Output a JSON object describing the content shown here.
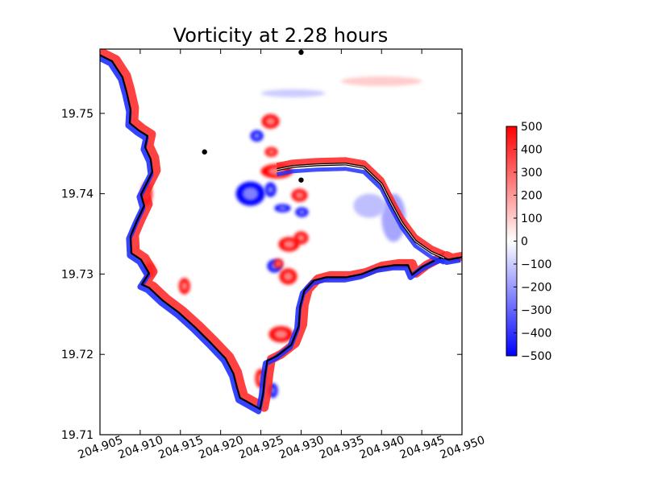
{
  "chart_data": {
    "type": "heatmap",
    "title": "Vorticity at 2.28 hours",
    "xlabel": "",
    "ylabel": "",
    "xlim": [
      204.905,
      204.95
    ],
    "ylim": [
      19.71,
      19.758
    ],
    "xticks": [
      204.905,
      204.91,
      204.915,
      204.92,
      204.925,
      204.93,
      204.935,
      204.94,
      204.945,
      204.95
    ],
    "xtick_labels": [
      "204.905",
      "204.910",
      "204.915",
      "204.920",
      "204.925",
      "204.930",
      "204.935",
      "204.940",
      "204.945",
      "204.950"
    ],
    "yticks": [
      19.71,
      19.72,
      19.73,
      19.74,
      19.75
    ],
    "ytick_labels": [
      "19.71",
      "19.72",
      "19.73",
      "19.74",
      "19.75"
    ],
    "colorbar": {
      "min": -500,
      "max": 500,
      "colormap": "bwr",
      "ticks": [
        500,
        400,
        300,
        200,
        100,
        0,
        -100,
        -200,
        -300,
        -400,
        -500
      ],
      "tick_labels": [
        "500",
        "400",
        "300",
        "200",
        "100",
        "0",
        "−100",
        "−200",
        "−300",
        "−400",
        "−500"
      ]
    },
    "gauge_points": [
      {
        "x": 204.93,
        "y": 19.7576
      },
      {
        "x": 204.918,
        "y": 19.7452
      },
      {
        "x": 204.93,
        "y": 19.7417
      }
    ],
    "coastline": [
      [
        204.9045,
        19.7575
      ],
      [
        204.9065,
        19.7565
      ],
      [
        204.9078,
        19.7545
      ],
      [
        204.9083,
        19.7527
      ],
      [
        204.9088,
        19.7505
      ],
      [
        204.9087,
        19.7488
      ],
      [
        204.9098,
        19.7479
      ],
      [
        204.9109,
        19.7472
      ],
      [
        204.9106,
        19.7458
      ],
      [
        204.9113,
        19.7443
      ],
      [
        204.9115,
        19.7427
      ],
      [
        204.9108,
        19.7413
      ],
      [
        204.9101,
        19.7399
      ],
      [
        204.9105,
        19.7385
      ],
      [
        204.9096,
        19.7366
      ],
      [
        204.9088,
        19.7347
      ],
      [
        204.9089,
        19.7326
      ],
      [
        204.9101,
        19.7318
      ],
      [
        204.9111,
        19.7301
      ],
      [
        204.9102,
        19.7287
      ],
      [
        204.9111,
        19.7283
      ],
      [
        204.9128,
        19.7267
      ],
      [
        204.9148,
        19.7252
      ],
      [
        204.9168,
        19.7234
      ],
      [
        204.9188,
        19.7214
      ],
      [
        204.9206,
        19.7195
      ],
      [
        204.9216,
        19.7176
      ],
      [
        204.922,
        19.716
      ],
      [
        204.9224,
        19.7146
      ],
      [
        204.9233,
        19.7141
      ],
      [
        204.9249,
        19.7132
      ],
      [
        204.9253,
        19.7152
      ],
      [
        204.9255,
        19.7173
      ],
      [
        204.9258,
        19.7192
      ],
      [
        204.927,
        19.7198
      ],
      [
        204.9288,
        19.7212
      ],
      [
        204.9297,
        19.7235
      ],
      [
        204.9299,
        19.726
      ],
      [
        204.9304,
        19.7279
      ],
      [
        204.9316,
        19.7292
      ],
      [
        204.9331,
        19.7296
      ],
      [
        204.9356,
        19.7296
      ],
      [
        204.9376,
        19.73
      ],
      [
        204.9396,
        19.7308
      ],
      [
        204.9416,
        19.7311
      ],
      [
        204.9433,
        19.7311
      ],
      [
        204.9438,
        19.7299
      ],
      [
        204.9451,
        19.7309
      ],
      [
        204.9466,
        19.7317
      ],
      [
        204.9476,
        19.7321
      ],
      [
        204.9483,
        19.7318
      ],
      [
        204.95,
        19.7321
      ]
    ],
    "breakwater": [
      [
        204.927,
        19.743
      ],
      [
        204.929,
        19.7434
      ],
      [
        204.932,
        19.7436
      ],
      [
        204.9355,
        19.7437
      ],
      [
        204.9378,
        19.7433
      ],
      [
        204.94,
        19.7412
      ],
      [
        204.9412,
        19.7388
      ],
      [
        204.9425,
        19.7364
      ],
      [
        204.9442,
        19.7341
      ],
      [
        204.9462,
        19.7327
      ],
      [
        204.9478,
        19.732
      ]
    ],
    "features": [
      {
        "kind": "vortex",
        "x": 204.9262,
        "y": 19.749,
        "rx": 0.0011,
        "ry": 0.0009,
        "sign": 1
      },
      {
        "kind": "vortex",
        "x": 204.9245,
        "y": 19.7472,
        "rx": 0.0008,
        "ry": 0.0007,
        "sign": -1
      },
      {
        "kind": "vortex",
        "x": 204.9263,
        "y": 19.7452,
        "rx": 0.0008,
        "ry": 0.0006,
        "sign": 1
      },
      {
        "kind": "vortex",
        "x": 204.9237,
        "y": 19.74,
        "rx": 0.0018,
        "ry": 0.0015,
        "sign": -1
      },
      {
        "kind": "vortex",
        "x": 204.9262,
        "y": 19.7405,
        "rx": 0.0007,
        "ry": 0.0009,
        "sign": -1
      },
      {
        "kind": "vortex",
        "x": 204.927,
        "y": 19.7428,
        "rx": 0.002,
        "ry": 0.0009,
        "sign": 1
      },
      {
        "kind": "vortex",
        "x": 204.9298,
        "y": 19.7398,
        "rx": 0.001,
        "ry": 0.0008,
        "sign": 1
      },
      {
        "kind": "vortex",
        "x": 204.9301,
        "y": 19.7377,
        "rx": 0.0008,
        "ry": 0.0006,
        "sign": -1
      },
      {
        "kind": "vortex",
        "x": 204.9277,
        "y": 19.7382,
        "rx": 0.001,
        "ry": 0.0005,
        "sign": -1
      },
      {
        "kind": "vortex",
        "x": 204.93,
        "y": 19.7345,
        "rx": 0.0009,
        "ry": 0.0008,
        "sign": 1
      },
      {
        "kind": "vortex",
        "x": 204.9285,
        "y": 19.7337,
        "rx": 0.0013,
        "ry": 0.0009,
        "sign": 1
      },
      {
        "kind": "vortex",
        "x": 204.9267,
        "y": 19.731,
        "rx": 0.0009,
        "ry": 0.0008,
        "sign": -1
      },
      {
        "kind": "vortex",
        "x": 204.9284,
        "y": 19.7297,
        "rx": 0.0011,
        "ry": 0.001,
        "sign": 1
      },
      {
        "kind": "vortex",
        "x": 204.9272,
        "y": 19.7313,
        "rx": 0.0006,
        "ry": 0.0006,
        "sign": 1
      },
      {
        "kind": "vortex",
        "x": 204.9275,
        "y": 19.7225,
        "rx": 0.0015,
        "ry": 0.001,
        "sign": 1
      },
      {
        "kind": "vortex",
        "x": 204.925,
        "y": 19.717,
        "rx": 0.0007,
        "ry": 0.0012,
        "sign": 1
      },
      {
        "kind": "vortex",
        "x": 204.9265,
        "y": 19.7155,
        "rx": 0.0006,
        "ry": 0.0009,
        "sign": -1
      },
      {
        "kind": "vortex",
        "x": 204.9108,
        "y": 19.74,
        "rx": 0.0007,
        "ry": 0.0015,
        "sign": 1
      },
      {
        "kind": "vortex",
        "x": 204.9112,
        "y": 19.7305,
        "rx": 0.0006,
        "ry": 0.0009,
        "sign": 1
      },
      {
        "kind": "vortex",
        "x": 204.9155,
        "y": 19.7285,
        "rx": 0.0007,
        "ry": 0.001,
        "sign": 1
      },
      {
        "kind": "vortex",
        "x": 204.9415,
        "y": 19.737,
        "rx": 0.0015,
        "ry": 0.003,
        "sign": -0.35
      },
      {
        "kind": "vortex",
        "x": 204.9385,
        "y": 19.7385,
        "rx": 0.002,
        "ry": 0.0015,
        "sign": -0.25
      },
      {
        "kind": "vortex",
        "x": 204.929,
        "y": 19.7525,
        "rx": 0.004,
        "ry": 0.0005,
        "sign": -0.2
      },
      {
        "kind": "vortex",
        "x": 204.94,
        "y": 19.754,
        "rx": 0.005,
        "ry": 0.0006,
        "sign": 0.2
      }
    ]
  }
}
